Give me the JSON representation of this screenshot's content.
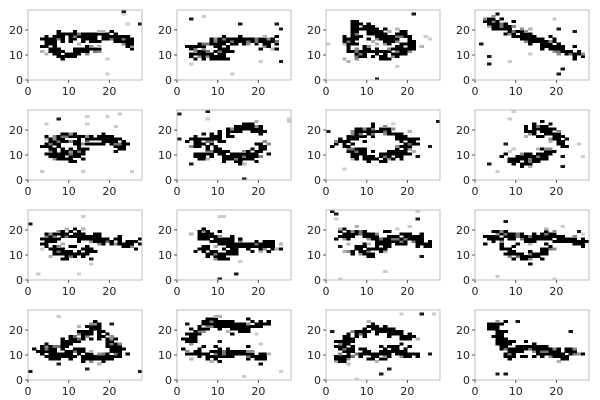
{
  "chart_data": {
    "type": "heatmap",
    "grid": {
      "rows": 4,
      "cols": 4
    },
    "panel_count": 16,
    "image_size": [
      28,
      28
    ],
    "colormap": "gray_r",
    "xlim": [
      0,
      28
    ],
    "ylim": [
      0,
      28
    ],
    "x_ticks": [
      {
        "value": 0,
        "label": "0"
      },
      {
        "value": 10,
        "label": "10"
      },
      {
        "value": 20,
        "label": "20"
      }
    ],
    "y_ticks": [
      {
        "value": 0,
        "label": "0"
      },
      {
        "value": 10,
        "label": "10"
      },
      {
        "value": 20,
        "label": "20"
      }
    ],
    "grid_lines": false,
    "title": "",
    "xlabel": "",
    "ylabel": "",
    "frame_color": "#bcbcbc",
    "ink_color": "#000000",
    "background_color": "#ffffff"
  }
}
